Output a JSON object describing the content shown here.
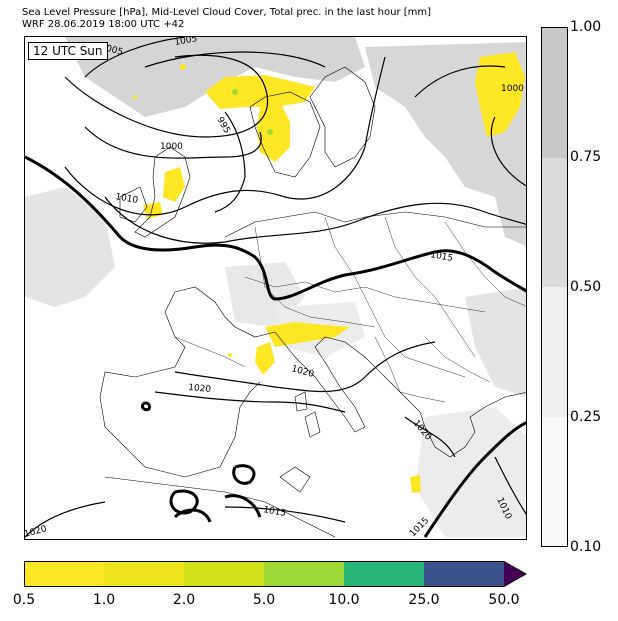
{
  "header": {
    "line1": "Sea Level Pressure [hPa], Mid-Level Cloud Cover, Total prec. in the last hour [mm]",
    "line2": "WRF 28.06.2019 18:00 UTC +42"
  },
  "map": {
    "time_label": "12 UTC Sun",
    "isobar_labels": [
      "1005",
      "1005",
      "995",
      "1000",
      "1010",
      "1000",
      "1015",
      "1020",
      "1020",
      "1020",
      "1015",
      "1010",
      "1015",
      "1020"
    ]
  },
  "cloud_colorbar": {
    "ticks": [
      "1.00",
      "0.75",
      "0.50",
      "0.25",
      "0.10"
    ],
    "colors": [
      "#c8c8c8",
      "#dcdcdc",
      "#eeeeee",
      "#f9f9f9"
    ]
  },
  "precip_colorbar": {
    "ticks": [
      "0.5",
      "1.0",
      "2.0",
      "5.0",
      "10.0",
      "25.0",
      "50.0"
    ],
    "colors": [
      "#fde725",
      "#eee51e",
      "#d2e21b",
      "#a0da39",
      "#2ab579",
      "#3b528b",
      "#440154"
    ]
  }
}
